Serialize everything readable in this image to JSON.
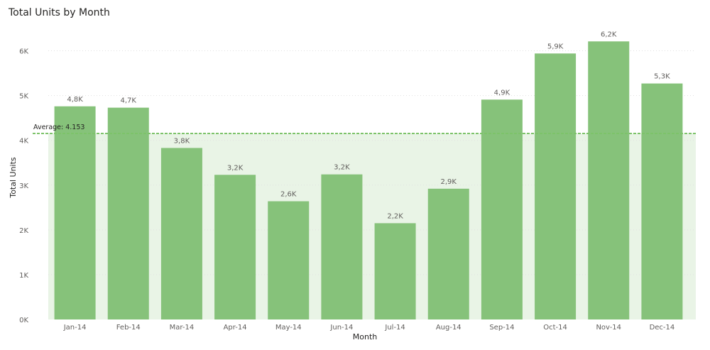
{
  "chart_data": {
    "type": "bar",
    "title": "Total Units by Month",
    "xlabel": "Month",
    "ylabel": "Total Units",
    "categories": [
      "Jan-14",
      "Feb-14",
      "Mar-14",
      "Apr-14",
      "May-14",
      "Jun-14",
      "Jul-14",
      "Aug-14",
      "Sep-14",
      "Oct-14",
      "Nov-14",
      "Dec-14"
    ],
    "values": [
      4760,
      4730,
      3830,
      3230,
      2640,
      3240,
      2150,
      2920,
      4910,
      5940,
      6210,
      5270
    ],
    "data_labels": [
      "4,8K",
      "4,7K",
      "3,8K",
      "3,2K",
      "2,6K",
      "3,2K",
      "2,2K",
      "2,9K",
      "4,9K",
      "5,9K",
      "6,2K",
      "5,3K"
    ],
    "ylim": [
      0,
      6500
    ],
    "y_ticks": [
      0,
      1000,
      2000,
      3000,
      4000,
      5000,
      6000
    ],
    "y_tick_labels": [
      "0K",
      "1K",
      "2K",
      "3K",
      "4K",
      "5K",
      "6K"
    ],
    "average": 4153,
    "average_label": "Average: 4.153",
    "grid": true,
    "colors": {
      "bar": "#86C27A",
      "average_line": "#7DC36A",
      "average_band": "#E9F4E6",
      "grid": "#E1E1E1"
    }
  }
}
